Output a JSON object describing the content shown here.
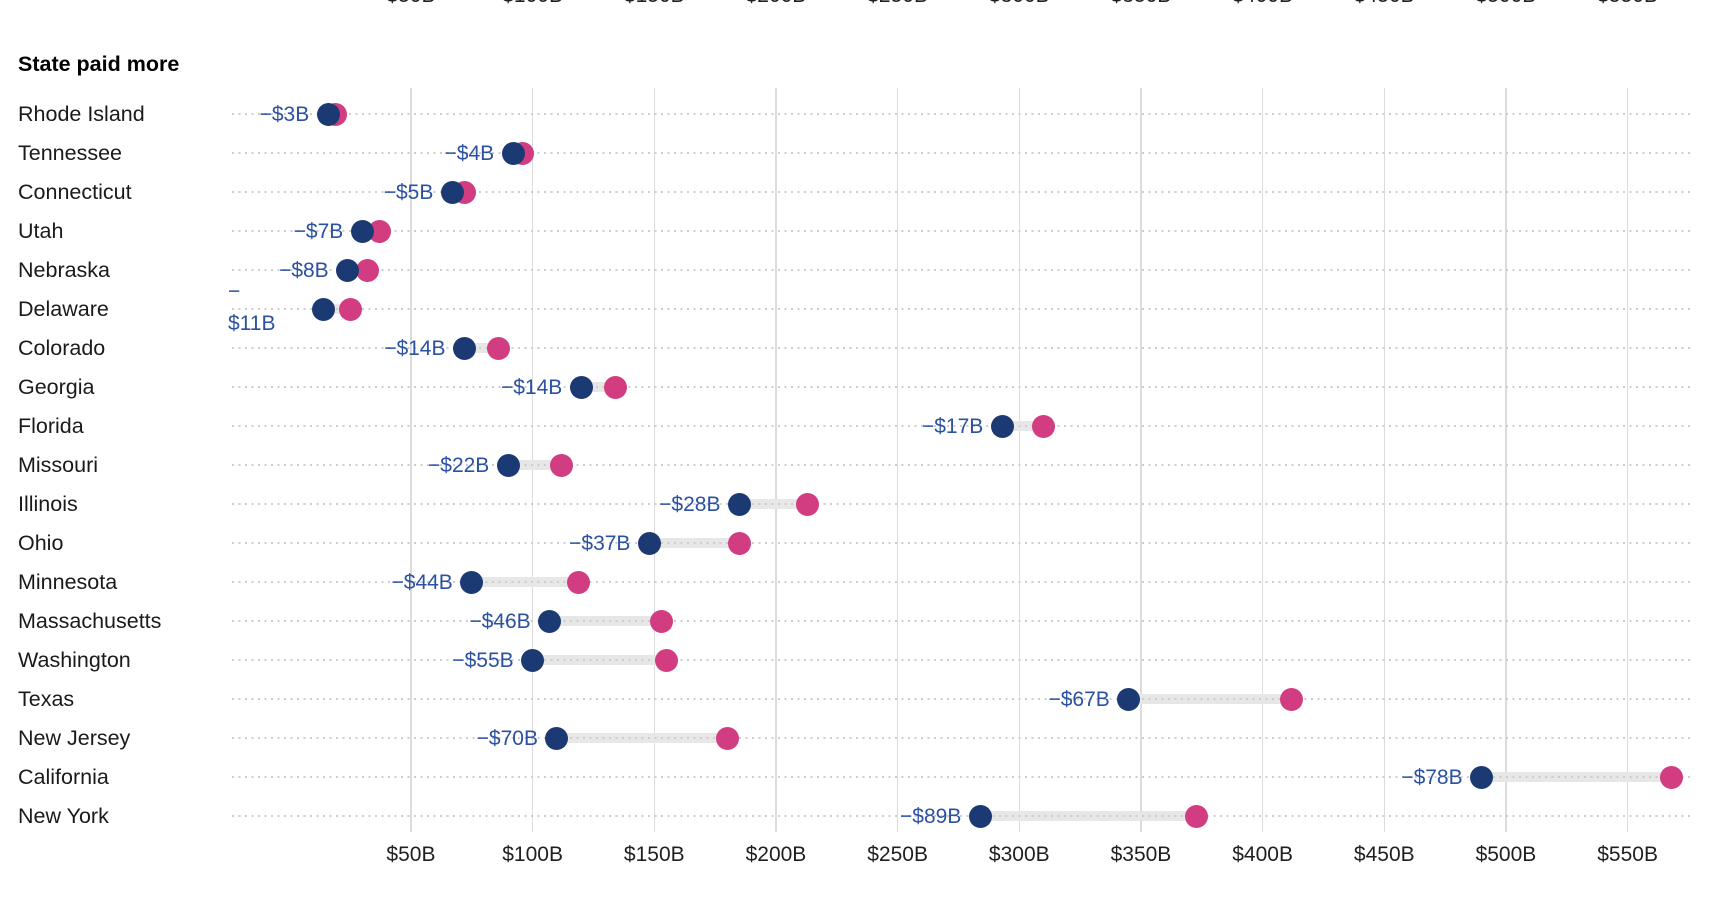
{
  "header": {
    "section_label": "State paid more"
  },
  "axis": {
    "tick_values": [
      50,
      100,
      150,
      200,
      250,
      300,
      350,
      400,
      450,
      500,
      550
    ],
    "tick_labels": [
      "$50B",
      "$100B",
      "$150B",
      "$200B",
      "$250B",
      "$300B",
      "$350B",
      "$400B",
      "$450B",
      "$500B",
      "$550B"
    ]
  },
  "colors": {
    "navy_dot": "#1b3a73",
    "pink_dot": "#d23c80",
    "diff_label_text": "#2b51a0",
    "grid": "#dcdcdc",
    "leader_dots": "#cdcdcd",
    "connector": "#e7e7e7",
    "text": "#1a1a1a"
  },
  "chart_data": {
    "type": "scatter",
    "subtype": "dumbbell",
    "title": "State paid more",
    "x_axis": {
      "min": 0,
      "max": 580,
      "unit": "$B",
      "ticks": [
        50,
        100,
        150,
        200,
        250,
        300,
        350,
        400,
        450,
        500,
        550
      ],
      "grid": true
    },
    "series": [
      {
        "name": "navy-dot-value",
        "color": "#1b3a73"
      },
      {
        "name": "pink-dot-value",
        "color": "#d23c80"
      }
    ],
    "rows": [
      {
        "state": "Rhode Island",
        "diff_label": "−$3B",
        "navy": 16,
        "pink": 19,
        "wrap": false
      },
      {
        "state": "Tennessee",
        "diff_label": "−$4B",
        "navy": 92,
        "pink": 96,
        "wrap": false
      },
      {
        "state": "Connecticut",
        "diff_label": "−$5B",
        "navy": 67,
        "pink": 72,
        "wrap": false
      },
      {
        "state": "Utah",
        "diff_label": "−$7B",
        "navy": 30,
        "pink": 37,
        "wrap": false
      },
      {
        "state": "Nebraska",
        "diff_label": "−$8B",
        "navy": 24,
        "pink": 32,
        "wrap": false
      },
      {
        "state": "Delaware",
        "diff_label": "−\n$11B",
        "navy": 14,
        "pink": 25,
        "wrap": true
      },
      {
        "state": "Colorado",
        "diff_label": "−$14B",
        "navy": 72,
        "pink": 86,
        "wrap": false
      },
      {
        "state": "Georgia",
        "diff_label": "−$14B",
        "navy": 120,
        "pink": 134,
        "wrap": false
      },
      {
        "state": "Florida",
        "diff_label": "−$17B",
        "navy": 293,
        "pink": 310,
        "wrap": false
      },
      {
        "state": "Missouri",
        "diff_label": "−$22B",
        "navy": 90,
        "pink": 112,
        "wrap": false
      },
      {
        "state": "Illinois",
        "diff_label": "−$28B",
        "navy": 185,
        "pink": 213,
        "wrap": false
      },
      {
        "state": "Ohio",
        "diff_label": "−$37B",
        "navy": 148,
        "pink": 185,
        "wrap": false
      },
      {
        "state": "Minnesota",
        "diff_label": "−$44B",
        "navy": 75,
        "pink": 119,
        "wrap": false
      },
      {
        "state": "Massachusetts",
        "diff_label": "−$46B",
        "navy": 107,
        "pink": 153,
        "wrap": false
      },
      {
        "state": "Washington",
        "diff_label": "−$55B",
        "navy": 100,
        "pink": 155,
        "wrap": false
      },
      {
        "state": "Texas",
        "diff_label": "−$67B",
        "navy": 345,
        "pink": 412,
        "wrap": false
      },
      {
        "state": "New Jersey",
        "diff_label": "−$70B",
        "navy": 110,
        "pink": 180,
        "wrap": false
      },
      {
        "state": "California",
        "diff_label": "−$78B",
        "navy": 490,
        "pink": 568,
        "wrap": false
      },
      {
        "state": "New York",
        "diff_label": "−$89B",
        "navy": 284,
        "pink": 373,
        "wrap": false
      }
    ]
  }
}
